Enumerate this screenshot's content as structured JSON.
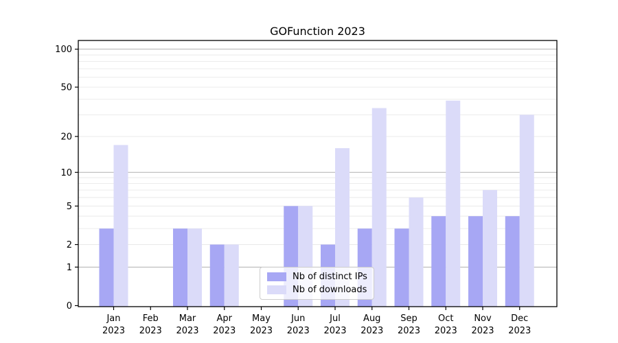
{
  "chart_data": {
    "type": "bar",
    "title": "GOFunction 2023",
    "categories": [
      "Jan",
      "Feb",
      "Mar",
      "Apr",
      "May",
      "Jun",
      "Jul",
      "Aug",
      "Sep",
      "Oct",
      "Nov",
      "Dec"
    ],
    "x_year_label": "2023",
    "series": [
      {
        "name": "Nb of distinct IPs",
        "color": "#a7a7f4",
        "values": [
          3,
          0,
          3,
          2,
          0,
          5,
          2,
          3,
          3,
          4,
          4,
          4
        ]
      },
      {
        "name": "Nb of downloads",
        "color": "#dbdbf9",
        "values": [
          17,
          0,
          3,
          2,
          0,
          5,
          16,
          34,
          6,
          39,
          7,
          30
        ]
      }
    ],
    "yscale": "log1p",
    "ylim": [
      0,
      118
    ],
    "ytick_labels": [
      0,
      1,
      2,
      5,
      10,
      20,
      50,
      100
    ],
    "major_gridlines": [
      1,
      10,
      100
    ],
    "minor_gridlines": [
      2,
      3,
      4,
      5,
      6,
      7,
      8,
      9,
      20,
      30,
      40,
      50,
      60,
      70,
      80,
      90
    ],
    "grid": "on",
    "legend_position": "lower center",
    "colors": {
      "axis": "#000000",
      "major_grid": "#b0b0b0",
      "minor_grid": "#e9e9e9",
      "tick_text": "#000000"
    }
  }
}
